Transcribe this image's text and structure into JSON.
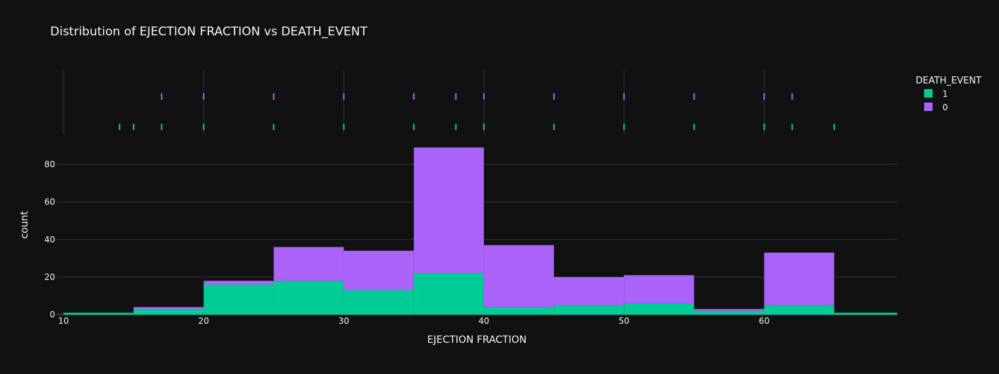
{
  "chart_data": {
    "type": "bar",
    "title": "Distribution of EJECTION FRACTION vs DEATH_EVENT",
    "xlabel": "EJECTION FRACTION",
    "ylabel": "count",
    "xlim": [
      9.5,
      69.5
    ],
    "ylim": [
      0,
      93
    ],
    "xticks": [
      10,
      20,
      30,
      40,
      50,
      60
    ],
    "yticks": [
      0,
      20,
      40,
      60,
      80
    ],
    "bin_edges": [
      10,
      15,
      20,
      25,
      30,
      35,
      40,
      45,
      50,
      55,
      60,
      65,
      70
    ],
    "barmode": "stack",
    "grid": true,
    "legend": {
      "title": "DEATH_EVENT",
      "position": "right"
    },
    "series": [
      {
        "name": "1",
        "color": "#00cc96",
        "values": [
          1,
          3,
          16,
          18,
          13,
          22,
          4,
          5,
          6,
          2,
          5,
          1
        ]
      },
      {
        "name": "0",
        "color": "#ab63fa",
        "values": [
          0,
          1,
          2,
          18,
          21,
          67,
          33,
          15,
          15,
          1,
          28,
          0
        ]
      }
    ],
    "rug": [
      {
        "name": "0",
        "color": "#ab63fa",
        "x": [
          17,
          20,
          25,
          30,
          35,
          38,
          40,
          45,
          50,
          55,
          60,
          62
        ]
      },
      {
        "name": "1",
        "color": "#00cc96",
        "x": [
          14,
          15,
          17,
          20,
          25,
          30,
          35,
          38,
          40,
          45,
          50,
          55,
          60,
          62,
          65
        ]
      }
    ]
  }
}
